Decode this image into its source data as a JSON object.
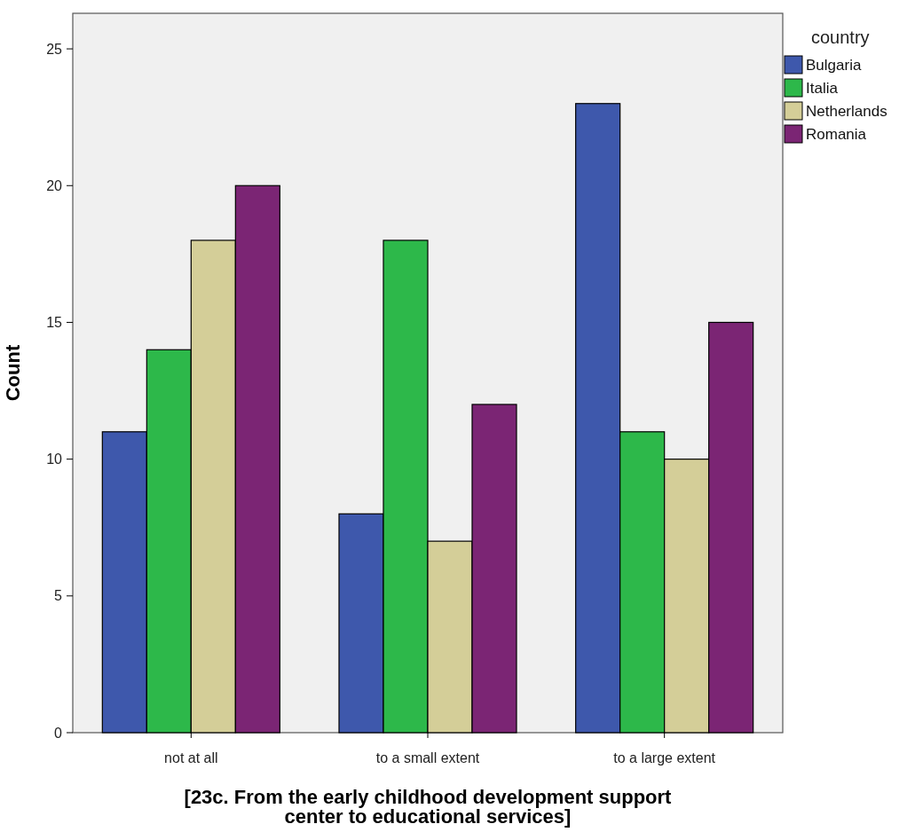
{
  "chart_data": {
    "type": "bar",
    "xlabel": "[23c. From the early childhood development support\ncenter to educational services]",
    "ylabel": "Count",
    "legend_title": "country",
    "categories": [
      "not at all",
      "to a small extent",
      "to a large extent"
    ],
    "series": [
      {
        "name": "Bulgaria",
        "color": "#3e58ac",
        "values": [
          11,
          8,
          23
        ]
      },
      {
        "name": "Italia",
        "color": "#2db84a",
        "values": [
          14,
          18,
          11
        ]
      },
      {
        "name": "Netherlands",
        "color": "#d4ce98",
        "values": [
          18,
          7,
          10
        ]
      },
      {
        "name": "Romania",
        "color": "#7b2574",
        "values": [
          20,
          12,
          15
        ]
      }
    ],
    "ylim": [
      0,
      26.3
    ],
    "yticks": [
      0,
      5,
      10,
      15,
      20,
      25
    ],
    "legend": "right",
    "grid": false
  }
}
